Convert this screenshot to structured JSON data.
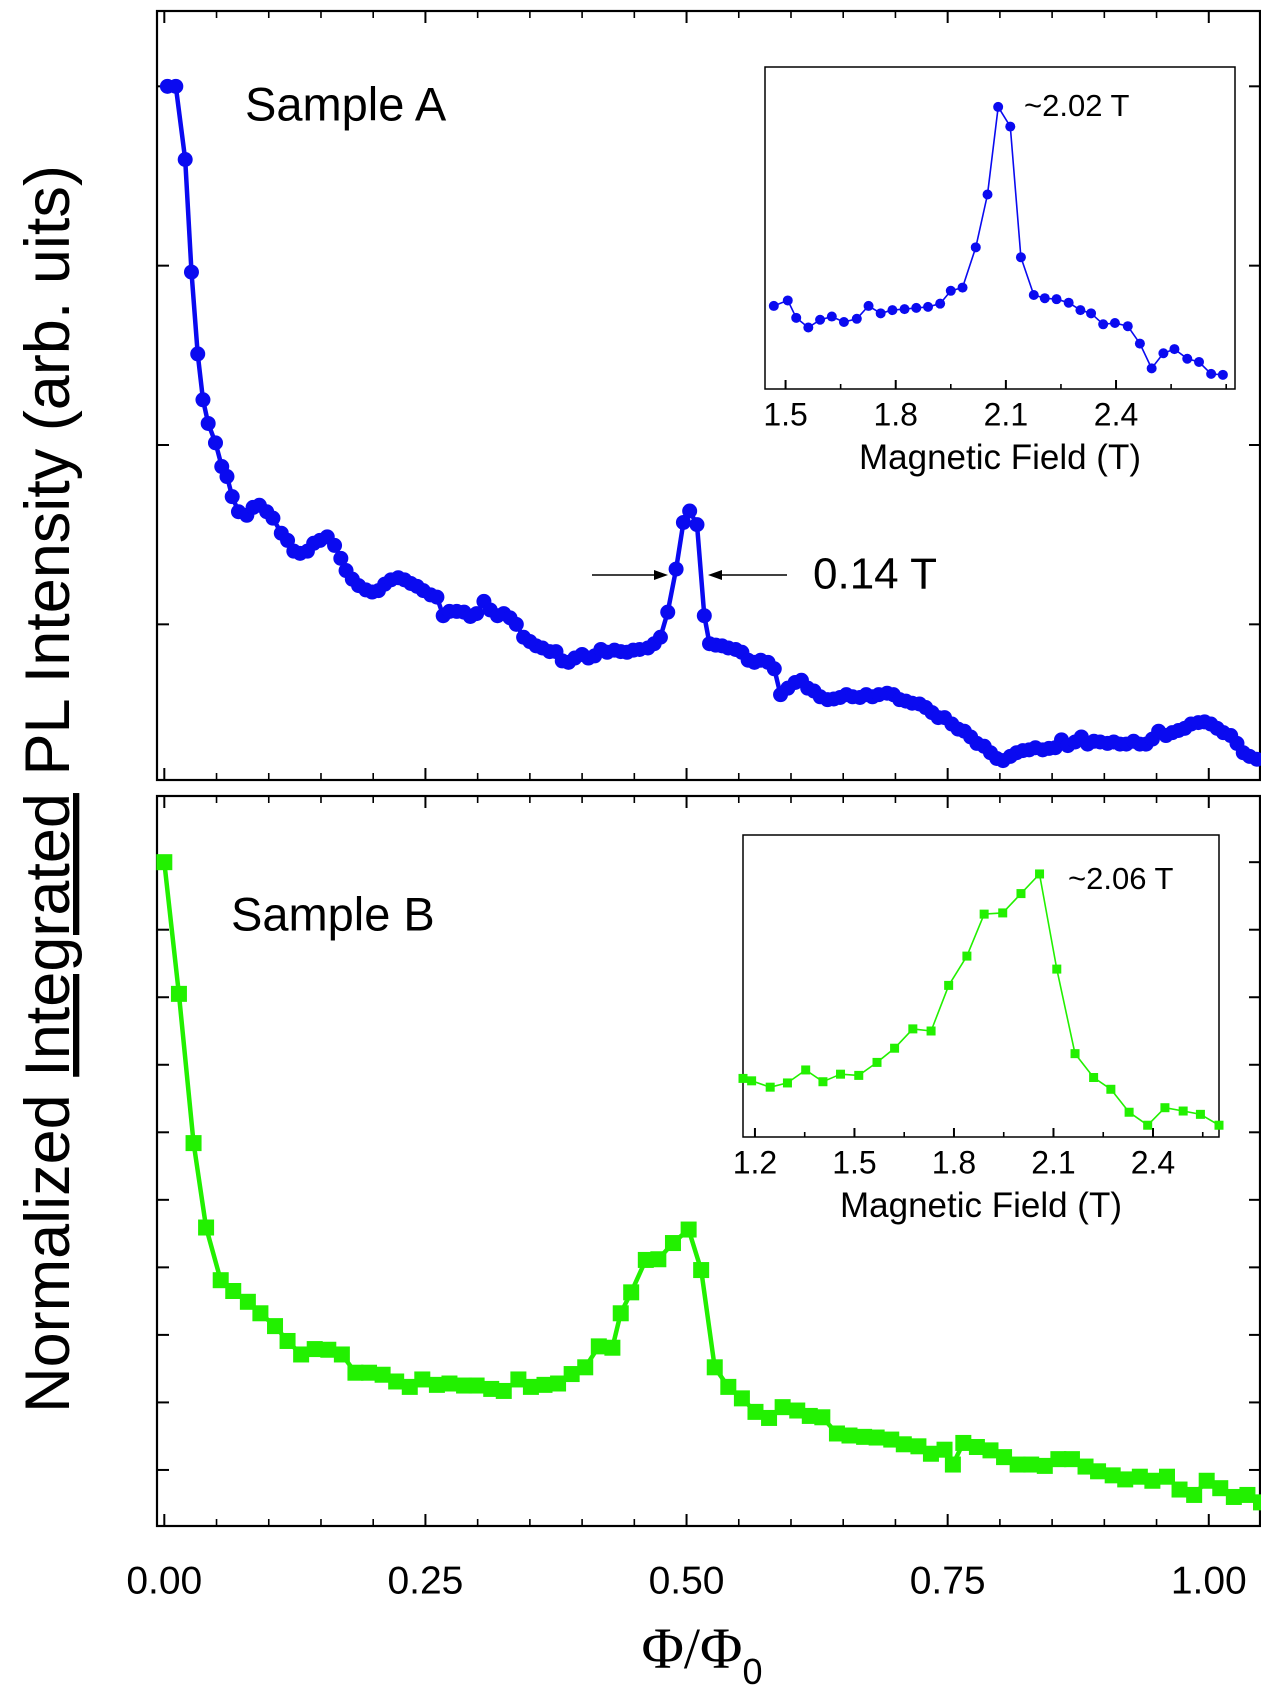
{
  "figure": {
    "y_label": {
      "before": "Normalized",
      "underlined": "Integrated",
      "after": "PL Intensity (arb. uits)"
    }
  },
  "chart_data": [
    {
      "type": "line",
      "label": "Sample A",
      "annotation": "0.14 T",
      "color": "#0a0af0",
      "marker": "circle",
      "xlim": [
        -0.007,
        1.05
      ],
      "xticks": [
        0,
        0.25,
        0.5,
        0.75,
        1.0
      ],
      "ylim": [
        0.033,
        1.105
      ],
      "yticks": [
        0.25,
        0.5,
        0.75,
        1.0
      ],
      "x": [
        0.003,
        0.011,
        0.02,
        0.026,
        0.032,
        0.037,
        0.042,
        0.049,
        0.055,
        0.06,
        0.065,
        0.071,
        0.079,
        0.085,
        0.091,
        0.098,
        0.104,
        0.112,
        0.118,
        0.124,
        0.13,
        0.137,
        0.143,
        0.149,
        0.156,
        0.163,
        0.169,
        0.174,
        0.18,
        0.186,
        0.193,
        0.199,
        0.205,
        0.211,
        0.217,
        0.224,
        0.23,
        0.236,
        0.242,
        0.248,
        0.255,
        0.261,
        0.267,
        0.273,
        0.28,
        0.287,
        0.293,
        0.299,
        0.306,
        0.312,
        0.319,
        0.325,
        0.331,
        0.337,
        0.344,
        0.35,
        0.356,
        0.362,
        0.369,
        0.375,
        0.381,
        0.387,
        0.393,
        0.4,
        0.406,
        0.412,
        0.418,
        0.424,
        0.431,
        0.437,
        0.443,
        0.449,
        0.455,
        0.463,
        0.469,
        0.475,
        0.482,
        0.49,
        0.497,
        0.503,
        0.51,
        0.517,
        0.522,
        0.528,
        0.534,
        0.54,
        0.547,
        0.553,
        0.559,
        0.565,
        0.571,
        0.578,
        0.584,
        0.59,
        0.597,
        0.604,
        0.61,
        0.616,
        0.622,
        0.628,
        0.635,
        0.641,
        0.647,
        0.653,
        0.659,
        0.666,
        0.672,
        0.678,
        0.684,
        0.692,
        0.698,
        0.704,
        0.71,
        0.716,
        0.723,
        0.729,
        0.735,
        0.741,
        0.747,
        0.754,
        0.76,
        0.766,
        0.772,
        0.778,
        0.785,
        0.791,
        0.797,
        0.803,
        0.81,
        0.816,
        0.822,
        0.828,
        0.834,
        0.841,
        0.847,
        0.853,
        0.859,
        0.865,
        0.872,
        0.878,
        0.884,
        0.89,
        0.896,
        0.903,
        0.909,
        0.915,
        0.921,
        0.928,
        0.934,
        0.94,
        0.946,
        0.952,
        0.959,
        0.965,
        0.971,
        0.977,
        0.983,
        0.99,
        0.996,
        1.002,
        1.008,
        1.014,
        1.021,
        1.027,
        1.033,
        1.039,
        1.046
      ],
      "values": [
        1.0,
        1.0,
        0.898,
        0.741,
        0.627,
        0.563,
        0.53,
        0.503,
        0.47,
        0.456,
        0.428,
        0.407,
        0.402,
        0.413,
        0.416,
        0.407,
        0.398,
        0.377,
        0.367,
        0.352,
        0.349,
        0.352,
        0.363,
        0.367,
        0.372,
        0.36,
        0.342,
        0.325,
        0.313,
        0.304,
        0.298,
        0.295,
        0.297,
        0.306,
        0.312,
        0.315,
        0.312,
        0.307,
        0.303,
        0.297,
        0.291,
        0.288,
        0.262,
        0.268,
        0.268,
        0.267,
        0.261,
        0.265,
        0.282,
        0.27,
        0.262,
        0.265,
        0.259,
        0.25,
        0.232,
        0.226,
        0.22,
        0.217,
        0.212,
        0.212,
        0.199,
        0.197,
        0.203,
        0.208,
        0.203,
        0.206,
        0.215,
        0.211,
        0.214,
        0.212,
        0.211,
        0.214,
        0.215,
        0.217,
        0.223,
        0.232,
        0.267,
        0.327,
        0.392,
        0.408,
        0.389,
        0.262,
        0.223,
        0.221,
        0.22,
        0.217,
        0.215,
        0.211,
        0.2,
        0.197,
        0.2,
        0.197,
        0.188,
        0.152,
        0.161,
        0.169,
        0.172,
        0.161,
        0.157,
        0.149,
        0.145,
        0.146,
        0.148,
        0.152,
        0.149,
        0.148,
        0.152,
        0.149,
        0.152,
        0.154,
        0.152,
        0.145,
        0.143,
        0.14,
        0.139,
        0.134,
        0.127,
        0.12,
        0.12,
        0.111,
        0.104,
        0.101,
        0.093,
        0.084,
        0.08,
        0.071,
        0.063,
        0.06,
        0.066,
        0.071,
        0.074,
        0.075,
        0.078,
        0.075,
        0.077,
        0.078,
        0.089,
        0.081,
        0.086,
        0.093,
        0.083,
        0.087,
        0.086,
        0.084,
        0.086,
        0.083,
        0.083,
        0.087,
        0.083,
        0.083,
        0.09,
        0.101,
        0.095,
        0.099,
        0.102,
        0.105,
        0.111,
        0.113,
        0.114,
        0.111,
        0.105,
        0.099,
        0.095,
        0.084,
        0.071,
        0.066,
        0.062
      ]
    },
    {
      "type": "line",
      "label": "Sample B",
      "color": "#22f000",
      "marker": "square",
      "x_label": "Φ/Φ",
      "x_label_subscript": "0",
      "xlim": [
        -0.007,
        1.05
      ],
      "xticks": [
        {
          "value": 0,
          "label": "0.00"
        },
        {
          "value": 0.25,
          "label": "0.25"
        },
        {
          "value": 0.5,
          "label": "0.50"
        },
        {
          "value": 0.75,
          "label": "0.75"
        },
        {
          "value": 1.0,
          "label": "1.00"
        }
      ],
      "ylim": [
        0.017,
        1.098
      ],
      "yticks": [
        0.1,
        0.2,
        0.3,
        0.4,
        0.5,
        0.6,
        0.7,
        0.8,
        0.9,
        1.0
      ],
      "x": [
        0.0,
        0.014,
        0.028,
        0.04,
        0.054,
        0.066,
        0.08,
        0.092,
        0.106,
        0.118,
        0.131,
        0.144,
        0.157,
        0.17,
        0.183,
        0.196,
        0.209,
        0.222,
        0.235,
        0.247,
        0.261,
        0.273,
        0.287,
        0.299,
        0.313,
        0.325,
        0.339,
        0.351,
        0.364,
        0.377,
        0.39,
        0.403,
        0.416,
        0.429,
        0.437,
        0.447,
        0.461,
        0.473,
        0.487,
        0.502,
        0.514,
        0.527,
        0.54,
        0.553,
        0.566,
        0.579,
        0.592,
        0.606,
        0.618,
        0.63,
        0.644,
        0.656,
        0.67,
        0.682,
        0.696,
        0.708,
        0.722,
        0.734,
        0.747,
        0.755,
        0.765,
        0.778,
        0.791,
        0.804,
        0.817,
        0.83,
        0.843,
        0.856,
        0.869,
        0.882,
        0.894,
        0.908,
        0.92,
        0.934,
        0.946,
        0.96,
        0.972,
        0.986,
        0.998,
        1.011,
        1.024,
        1.037,
        1.05
      ],
      "values": [
        1.0,
        0.805,
        0.584,
        0.459,
        0.381,
        0.365,
        0.349,
        0.332,
        0.313,
        0.291,
        0.271,
        0.279,
        0.278,
        0.271,
        0.244,
        0.244,
        0.241,
        0.231,
        0.223,
        0.234,
        0.226,
        0.228,
        0.225,
        0.225,
        0.22,
        0.217,
        0.234,
        0.223,
        0.226,
        0.228,
        0.242,
        0.252,
        0.283,
        0.281,
        0.332,
        0.363,
        0.411,
        0.412,
        0.436,
        0.456,
        0.396,
        0.252,
        0.223,
        0.206,
        0.186,
        0.177,
        0.193,
        0.188,
        0.18,
        0.178,
        0.154,
        0.151,
        0.149,
        0.148,
        0.145,
        0.138,
        0.135,
        0.124,
        0.13,
        0.108,
        0.14,
        0.134,
        0.129,
        0.119,
        0.108,
        0.108,
        0.106,
        0.116,
        0.116,
        0.105,
        0.098,
        0.092,
        0.086,
        0.09,
        0.084,
        0.09,
        0.071,
        0.063,
        0.084,
        0.073,
        0.06,
        0.063,
        0.052
      ]
    },
    {
      "type": "line",
      "x_label": "Magnetic Field (T)",
      "peak_label": "~2.02 T",
      "color": "#0a0af0",
      "marker": "circle",
      "xlim": [
        1.444,
        2.724
      ],
      "xticks": [
        1.5,
        1.8,
        2.1,
        2.4
      ],
      "ylim": [
        0,
        1
      ],
      "x": [
        1.468,
        1.506,
        1.529,
        1.562,
        1.594,
        1.626,
        1.659,
        1.694,
        1.726,
        1.759,
        1.791,
        1.824,
        1.856,
        1.888,
        1.921,
        1.95,
        1.982,
        2.018,
        2.05,
        2.079,
        2.112,
        2.141,
        2.176,
        2.206,
        2.238,
        2.271,
        2.303,
        2.332,
        2.365,
        2.397,
        2.432,
        2.465,
        2.497,
        2.529,
        2.559,
        2.594,
        2.626,
        2.659,
        2.691
      ],
      "values": [
        0.258,
        0.275,
        0.221,
        0.191,
        0.215,
        0.225,
        0.208,
        0.218,
        0.258,
        0.235,
        0.245,
        0.248,
        0.252,
        0.255,
        0.265,
        0.305,
        0.315,
        0.44,
        0.604,
        0.876,
        0.815,
        0.409,
        0.292,
        0.282,
        0.279,
        0.268,
        0.245,
        0.235,
        0.201,
        0.205,
        0.195,
        0.141,
        0.064,
        0.111,
        0.124,
        0.094,
        0.084,
        0.047,
        0.044
      ]
    },
    {
      "type": "line",
      "x_label": "Magnetic Field (T)",
      "peak_label": "~2.06 T",
      "color": "#22f000",
      "marker": "square",
      "xlim": [
        1.164,
        2.599
      ],
      "xticks": [
        1.2,
        1.5,
        1.8,
        2.1,
        2.4
      ],
      "ylim": [
        0,
        1
      ],
      "x": [
        1.164,
        1.19,
        1.246,
        1.298,
        1.353,
        1.405,
        1.458,
        1.513,
        1.568,
        1.621,
        1.676,
        1.731,
        1.784,
        1.839,
        1.891,
        1.947,
        2.002,
        2.058,
        2.11,
        2.165,
        2.221,
        2.273,
        2.328,
        2.384,
        2.436,
        2.491,
        2.543,
        2.599
      ],
      "values": [
        0.194,
        0.186,
        0.165,
        0.179,
        0.222,
        0.183,
        0.208,
        0.204,
        0.247,
        0.294,
        0.358,
        0.351,
        0.502,
        0.599,
        0.738,
        0.742,
        0.806,
        0.871,
        0.556,
        0.276,
        0.197,
        0.158,
        0.082,
        0.039,
        0.097,
        0.086,
        0.075,
        0.039
      ]
    }
  ]
}
